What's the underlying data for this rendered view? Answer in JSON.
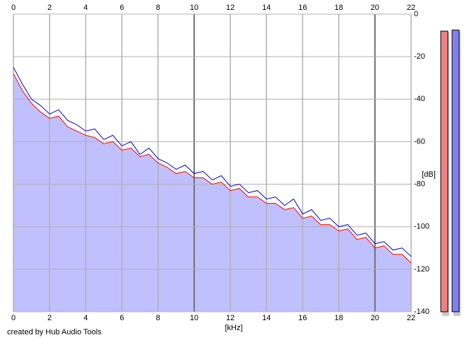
{
  "chart_data": {
    "type": "line",
    "x_label": "[kHz]",
    "y_label": "[dB]",
    "footer": "created by Hub Audio Tools",
    "x": [
      0,
      0.5,
      1,
      1.5,
      2,
      2.5,
      3,
      3.5,
      4,
      4.5,
      5,
      5.5,
      6,
      6.5,
      7,
      7.5,
      8,
      8.5,
      9,
      9.5,
      10,
      10.5,
      11,
      11.5,
      12,
      12.5,
      13,
      13.5,
      14,
      14.5,
      15,
      15.5,
      16,
      16.5,
      17,
      17.5,
      18,
      18.5,
      19,
      19.5,
      20,
      20.5,
      21,
      21.5,
      22
    ],
    "series": [
      {
        "color": "#ff0000",
        "values": [
          -28,
          -36,
          -42,
          -46,
          -49,
          -48,
          -53,
          -55,
          -57,
          -58,
          -61,
          -60,
          -64,
          -63,
          -67,
          -66,
          -70,
          -72,
          -75,
          -74,
          -77,
          -77,
          -80,
          -79,
          -83,
          -82,
          -86,
          -86,
          -89,
          -89,
          -92,
          -91,
          -96,
          -95,
          -99,
          -99,
          -102,
          -101,
          -106,
          -105,
          -110,
          -109,
          -113,
          -113,
          -117
        ]
      },
      {
        "color": "#0000cc",
        "values": [
          -25,
          -33,
          -40,
          -43,
          -47,
          -45,
          -50,
          -52,
          -55,
          -54,
          -59,
          -57,
          -62,
          -60,
          -66,
          -63,
          -68,
          -70,
          -73,
          -71,
          -75,
          -74,
          -78,
          -76,
          -81,
          -80,
          -84,
          -83,
          -87,
          -86,
          -90,
          -87,
          -94,
          -92,
          -97,
          -96,
          -100,
          -99,
          -104,
          -103,
          -108,
          -107,
          -111,
          -110,
          -114
        ]
      }
    ],
    "fill_color": "#c0c0ff",
    "xlim": [
      0,
      22
    ],
    "xticks": [
      0,
      2,
      4,
      6,
      8,
      10,
      12,
      14,
      16,
      18,
      20,
      22
    ],
    "ylim": [
      -140,
      0
    ],
    "yticks": [
      0,
      -20,
      -40,
      -60,
      -80,
      -100,
      -120,
      -140
    ],
    "grid": true,
    "meters": [
      {
        "color": "#f08080",
        "value": -8
      },
      {
        "color": "#8080f0",
        "value": -7.5
      }
    ]
  }
}
